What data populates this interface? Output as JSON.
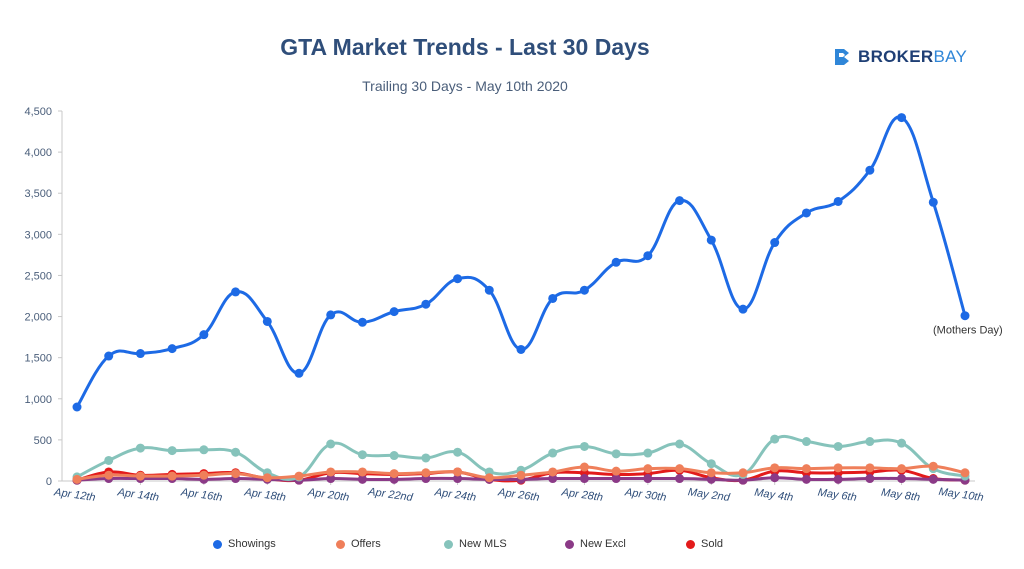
{
  "header": {
    "title": "GTA Market Trends - Last 30 Days",
    "subtitle": "Trailing 30 Days - May 10th 2020"
  },
  "logo": {
    "word_part1": "BROKER",
    "word_part2": "BAY",
    "brand_color": "#1f3f75",
    "accent_color": "#2f86d8"
  },
  "chart_data": {
    "type": "line",
    "x": [
      "Apr 12th",
      "Apr 13th",
      "Apr 14th",
      "Apr 15th",
      "Apr 16th",
      "Apr 17th",
      "Apr 18th",
      "Apr 19th",
      "Apr 20th",
      "Apr 21st",
      "Apr 22nd",
      "Apr 23rd",
      "Apr 24th",
      "Apr 25th",
      "Apr 26th",
      "Apr 27th",
      "Apr 28th",
      "Apr 29th",
      "Apr 30th",
      "May 1st",
      "May 2nd",
      "May 3rd",
      "May 4th",
      "May 5th",
      "May 6th",
      "May 7th",
      "May 8th",
      "May 9th",
      "May 10th"
    ],
    "x_tick_labels": [
      "Apr 12th",
      "Apr 14th",
      "Apr 16th",
      "Apr 18th",
      "Apr 20th",
      "Apr 22nd",
      "Apr 24th",
      "Apr 26th",
      "Apr 28th",
      "Apr 30th",
      "May 2nd",
      "May 4th",
      "May 6th",
      "May 8th",
      "May 10th"
    ],
    "ylim": [
      0,
      4500
    ],
    "y_ticks": [
      "0",
      "500",
      "1,000",
      "1,500",
      "2,000",
      "2,500",
      "3,000",
      "3,500",
      "4,000",
      "4,500"
    ],
    "grid": false,
    "legend_position": "bottom",
    "series": [
      {
        "name": "Showings",
        "color": "#1d6ae5",
        "values": [
          900,
          1520,
          1550,
          1610,
          1780,
          2300,
          1940,
          1310,
          2020,
          1930,
          2060,
          2150,
          2460,
          2320,
          1600,
          2220,
          2320,
          2660,
          2740,
          3410,
          2930,
          2090,
          2900,
          3260,
          3400,
          3780,
          4420,
          3390,
          2010
        ]
      },
      {
        "name": "Offers",
        "color": "#ef7f5a",
        "values": [
          20,
          70,
          60,
          60,
          70,
          90,
          40,
          60,
          110,
          110,
          90,
          100,
          110,
          40,
          70,
          110,
          170,
          120,
          150,
          150,
          100,
          100,
          160,
          150,
          160,
          160,
          150,
          180,
          100
        ]
      },
      {
        "name": "New MLS",
        "color": "#86c3bb",
        "values": [
          50,
          250,
          400,
          370,
          380,
          350,
          100,
          50,
          450,
          320,
          310,
          280,
          350,
          110,
          130,
          340,
          420,
          330,
          340,
          450,
          210,
          80,
          510,
          480,
          420,
          480,
          460,
          150,
          60
        ]
      },
      {
        "name": "New Excl",
        "color": "#8b3a87",
        "values": [
          10,
          30,
          30,
          30,
          20,
          30,
          20,
          10,
          30,
          20,
          20,
          30,
          30,
          20,
          20,
          30,
          30,
          30,
          30,
          30,
          20,
          10,
          40,
          20,
          20,
          30,
          30,
          20,
          10
        ]
      },
      {
        "name": "Sold",
        "color": "#e31b1b",
        "values": [
          10,
          110,
          70,
          80,
          90,
          100,
          30,
          10,
          100,
          90,
          80,
          90,
          110,
          20,
          10,
          100,
          100,
          80,
          90,
          130,
          40,
          10,
          120,
          100,
          100,
          110,
          130,
          30,
          10
        ]
      }
    ],
    "annotations": [
      {
        "x": "May 10th",
        "series": "Showings",
        "text": "(Mothers Day)"
      }
    ]
  },
  "legend": {
    "items": [
      "Showings",
      "Offers",
      "New MLS",
      "New Excl",
      "Sold"
    ]
  }
}
